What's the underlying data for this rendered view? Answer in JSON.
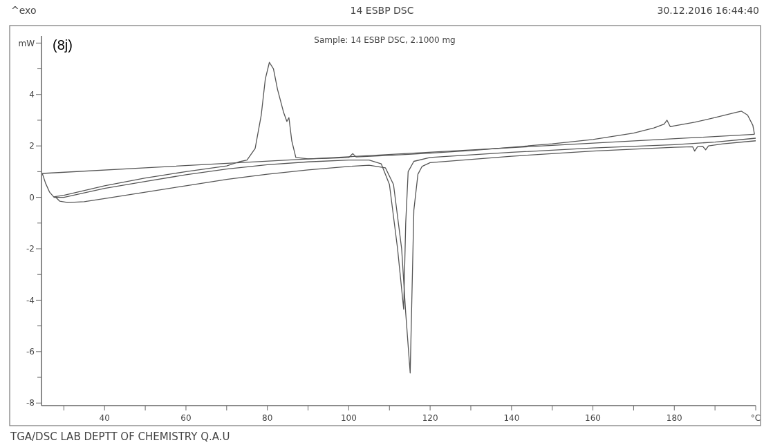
{
  "chart_data": {
    "type": "line",
    "title": "14 ESBP DSC",
    "subtitle": "Sample: 14 ESBP DSC, 2.1000 mg",
    "annotations": [
      "^exo",
      "30.12.2016 16:44:40",
      "(8j)",
      "TGA/DSC LAB DEPTT OF CHEMISTRY Q.A.U"
    ],
    "xlim": [
      24.5,
      200
    ],
    "xticks": [
      {
        "value": 30,
        "label": null
      },
      40,
      {
        "value": 50,
        "label": null
      },
      60,
      {
        "value": 70,
        "label": null
      },
      80,
      {
        "value": 90,
        "label": null
      },
      100,
      {
        "value": 110,
        "label": null
      },
      120,
      {
        "value": 130,
        "label": null
      },
      140,
      {
        "value": 150,
        "label": null
      },
      160,
      {
        "value": 170,
        "label": null
      },
      180,
      {
        "value": 190,
        "label": null
      },
      {
        "value": 200,
        "label": "°C"
      }
    ],
    "ylim": [
      -8.1,
      6.6
    ],
    "yticks": [
      -8,
      {
        "value": -7,
        "label": null
      },
      -6,
      {
        "value": -5,
        "label": null
      },
      -4,
      {
        "value": -3,
        "label": null
      },
      -2,
      {
        "value": -1,
        "label": null
      },
      0,
      {
        "value": 1,
        "label": null
      },
      2,
      {
        "value": 3,
        "label": null
      },
      4,
      {
        "value": 5,
        "label": null
      },
      {
        "value": 6,
        "label": "mW"
      }
    ],
    "grid": false,
    "marker": "none",
    "line_style": "solid",
    "series": [
      {
        "color": "#555555",
        "x": [
          24.7,
          25.5,
          26.5,
          27.5,
          30,
          40,
          50,
          60,
          70,
          73,
          75,
          77,
          78.5,
          79.5,
          80.5,
          81.5,
          82.5,
          84,
          84.8,
          85.3,
          86,
          87,
          90,
          95,
          100,
          101,
          101.8,
          110,
          120,
          130,
          140,
          150,
          160,
          170,
          175,
          177.5,
          178.2,
          179,
          180,
          185,
          190,
          195,
          196.5,
          198,
          199.3,
          199.7
        ],
        "values": [
          0.93,
          0.55,
          0.2,
          0.02,
          0.08,
          0.45,
          0.75,
          1.0,
          1.22,
          1.38,
          1.45,
          1.9,
          3.2,
          4.6,
          5.25,
          5.0,
          4.2,
          3.3,
          2.95,
          3.1,
          2.2,
          1.55,
          1.5,
          1.52,
          1.55,
          1.7,
          1.57,
          1.63,
          1.72,
          1.82,
          1.95,
          2.08,
          2.25,
          2.5,
          2.7,
          2.85,
          3.0,
          2.75,
          2.78,
          2.92,
          3.1,
          3.3,
          3.35,
          3.2,
          2.8,
          2.45
        ]
      },
      {
        "color": "#555555",
        "x": [
          199.7,
          150,
          100,
          50,
          24.7
        ],
        "values": [
          2.45,
          2.02,
          1.58,
          1.15,
          0.93
        ]
      },
      {
        "color": "#555555",
        "x": [
          27.5,
          30,
          40,
          50,
          60,
          70,
          80,
          90,
          100,
          105,
          108,
          110,
          112,
          113.5,
          114,
          114.6,
          116,
          120,
          140,
          160,
          180,
          190,
          200
        ],
        "values": [
          0.0,
          0.0,
          0.35,
          0.62,
          0.88,
          1.1,
          1.27,
          1.38,
          1.45,
          1.45,
          1.3,
          0.5,
          -2,
          -4.35,
          -1,
          1.0,
          1.4,
          1.55,
          1.75,
          1.92,
          2.05,
          2.15,
          2.3
        ]
      },
      {
        "color": "#555555",
        "x": [
          28,
          29,
          31,
          35,
          40,
          50,
          60,
          70,
          80,
          90,
          100,
          105,
          109,
          111,
          113,
          114,
          115.1,
          115.5,
          116,
          117,
          118,
          120,
          140,
          160,
          180,
          184.5,
          185,
          185.7,
          187,
          187.7,
          188.4,
          192,
          200
        ],
        "values": [
          0.0,
          -0.15,
          -0.2,
          -0.17,
          -0.05,
          0.2,
          0.45,
          0.7,
          0.9,
          1.07,
          1.2,
          1.25,
          1.15,
          0.5,
          -2,
          -4.5,
          -6.83,
          -4,
          -0.5,
          0.9,
          1.2,
          1.35,
          1.6,
          1.8,
          1.95,
          1.97,
          1.8,
          1.97,
          1.98,
          1.85,
          2.0,
          2.08,
          2.2
        ]
      }
    ]
  }
}
